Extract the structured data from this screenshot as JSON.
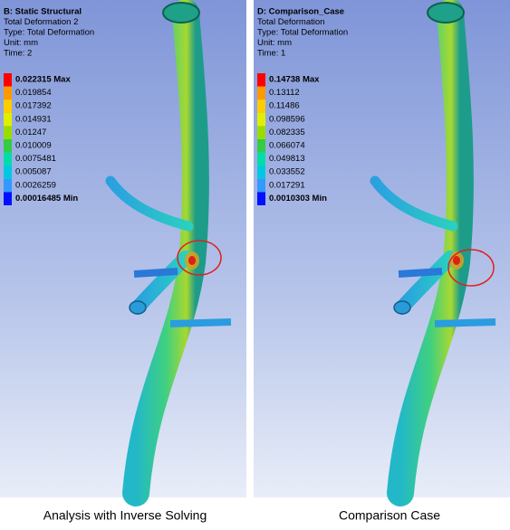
{
  "panels": [
    {
      "header": [
        "B: Static Structural",
        "Total Deformation 2",
        "Type: Total Deformation",
        "Unit: mm",
        "Time: 2"
      ],
      "legend": [
        "0.022315 Max",
        "0.019854",
        "0.017392",
        "0.014931",
        "0.01247",
        "0.010009",
        "0.0075481",
        "0.005087",
        "0.0026259",
        "0.00016485 Min"
      ],
      "caption": "Analysis with Inverse Solving"
    },
    {
      "header": [
        "D: Comparison_Case",
        "Total Deformation",
        "Type: Total Deformation",
        "Unit: mm",
        "Time: 1"
      ],
      "legend": [
        "0.14738 Max",
        "0.13112",
        "0.11486",
        "0.098596",
        "0.082335",
        "0.066074",
        "0.049813",
        "0.033552",
        "0.017291",
        "0.0010303 Min"
      ],
      "caption": "Comparison Case"
    }
  ]
}
